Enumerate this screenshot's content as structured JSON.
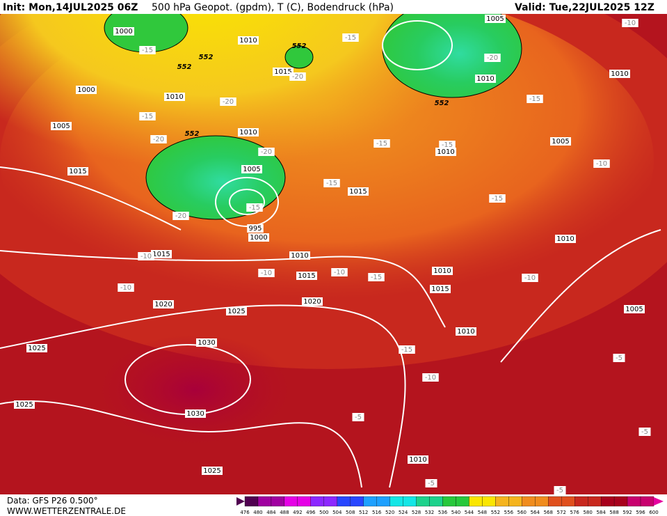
{
  "header": {
    "init": "Init: Mon,14JUL2025 06Z",
    "title": "500 hPa Geopot. (gpdm), T (C), Bodendruck (hPa)",
    "valid": "Valid: Tue,22JUL2025 12Z"
  },
  "footer": {
    "source": "Data: GFS P26 0.500°",
    "website": "WWW.WETTERZENTRALE.DE"
  },
  "colorbar": {
    "ticks": [
      476,
      480,
      484,
      488,
      492,
      496,
      500,
      504,
      508,
      512,
      516,
      520,
      524,
      528,
      532,
      536,
      540,
      544,
      548,
      552,
      556,
      560,
      564,
      568,
      572,
      576,
      580,
      584,
      588,
      592,
      596,
      600
    ]
  },
  "isobar_labels": [
    1000,
    1010,
    1005,
    1015,
    1000,
    1010,
    1010,
    1010,
    1005,
    1010,
    1005,
    1015,
    1005,
    1010,
    1015,
    995,
    1000,
    1015,
    1010,
    1010,
    1010,
    1015,
    1015,
    1020,
    1020,
    1025,
    1005,
    1010,
    1025,
    1030,
    1025,
    1030,
    1010,
    1025
  ],
  "temperature_labels": [
    -15,
    -15,
    -10,
    -20,
    -20,
    -20,
    -15,
    -15,
    -20,
    -20,
    -15,
    -15,
    -10,
    -15,
    -15,
    -15,
    -20,
    -10,
    -10,
    -10,
    -15,
    -10,
    -10,
    -15,
    -5,
    -10,
    -5,
    -5,
    -5,
    -5
  ],
  "geopotential_labels": [
    552,
    552,
    552,
    552,
    552
  ]
}
